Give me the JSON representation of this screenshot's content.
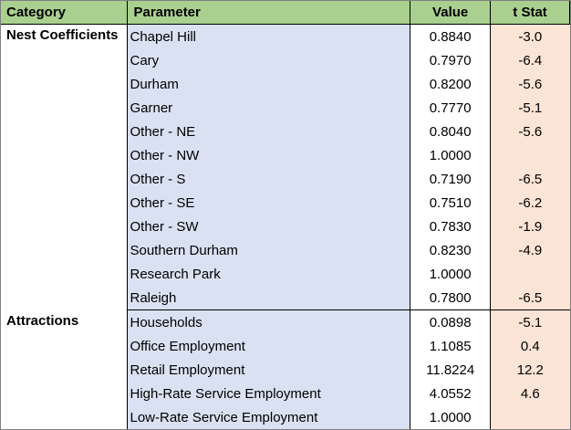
{
  "headers": {
    "category": "Category",
    "parameter": "Parameter",
    "value": "Value",
    "tstat": "t Stat"
  },
  "groups": [
    {
      "category": "Nest Coefficients",
      "rows": [
        {
          "param": "Chapel Hill",
          "value": "0.8840",
          "tstat": "-3.0"
        },
        {
          "param": "Cary",
          "value": "0.7970",
          "tstat": "-6.4"
        },
        {
          "param": "Durham",
          "value": "0.8200",
          "tstat": "-5.6"
        },
        {
          "param": "Garner",
          "value": "0.7770",
          "tstat": "-5.1"
        },
        {
          "param": "Other - NE",
          "value": "0.8040",
          "tstat": "-5.6"
        },
        {
          "param": "Other - NW",
          "value": "1.0000",
          "tstat": ""
        },
        {
          "param": "Other - S",
          "value": "0.7190",
          "tstat": "-6.5"
        },
        {
          "param": "Other - SE",
          "value": "0.7510",
          "tstat": "-6.2"
        },
        {
          "param": "Other - SW",
          "value": "0.7830",
          "tstat": "-1.9"
        },
        {
          "param": "Southern Durham",
          "value": "0.8230",
          "tstat": "-4.9"
        },
        {
          "param": "Research Park",
          "value": "1.0000",
          "tstat": ""
        },
        {
          "param": "Raleigh",
          "value": "0.7800",
          "tstat": "-6.5"
        }
      ]
    },
    {
      "category": "Attractions",
      "rows": [
        {
          "param": "Households",
          "value": "0.0898",
          "tstat": "-5.1"
        },
        {
          "param": "Office Employment",
          "value": "1.1085",
          "tstat": "0.4"
        },
        {
          "param": "Retail Employment",
          "value": "11.8224",
          "tstat": "12.2"
        },
        {
          "param": "High-Rate Service Employment",
          "value": "4.0552",
          "tstat": "4.6"
        },
        {
          "param": "Low-Rate Service Employment",
          "value": "1.0000",
          "tstat": ""
        }
      ]
    }
  ]
}
